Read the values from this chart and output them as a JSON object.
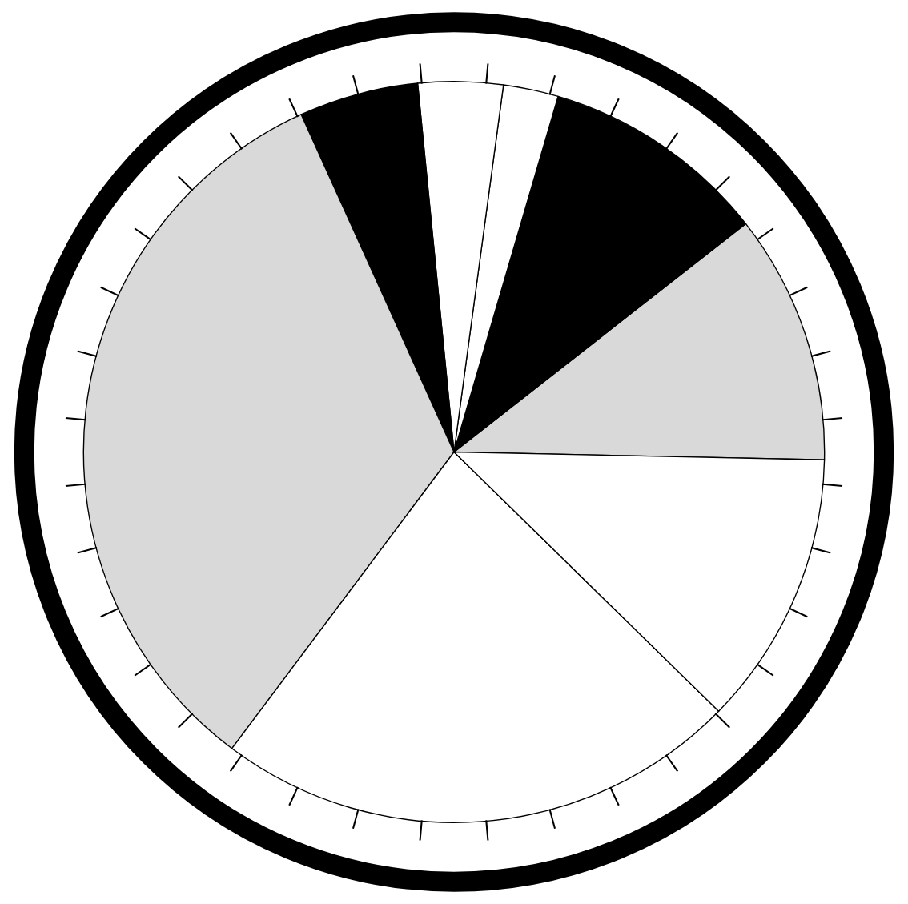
{
  "chart_data": {
    "type": "pie",
    "categories": [
      null,
      null,
      null,
      null,
      null,
      null,
      null,
      null
    ],
    "values": [
      10.9,
      9.9,
      2.4,
      3.7,
      5.2,
      33.0,
      22.9,
      12.0
    ],
    "colors": [
      "#d9d9d9",
      "#000000",
      "#ffffff",
      "#ffffff",
      "#000000",
      "#d9d9d9",
      "#ffffff",
      "#ffffff"
    ]
  }
}
